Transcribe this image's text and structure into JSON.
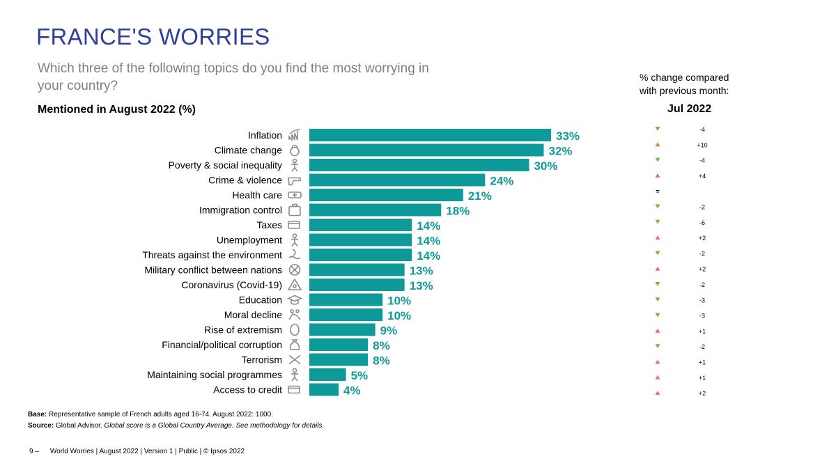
{
  "title": "FRANCE'S WORRIES",
  "subtitle": "Which three of the following topics do you find the most worrying in your country?",
  "mentioned_label": "Mentioned in August 2022 (%)",
  "change_header": "% change compared with previous month:",
  "change_month": "Jul 2022",
  "colors": {
    "bar": "#0e9a98",
    "title": "#2e3f9e",
    "up": "#e8706a",
    "down": "#7cb342",
    "icon": "#8a8a8a"
  },
  "chart_data": {
    "type": "bar",
    "orientation": "horizontal",
    "categories": [
      "Inflation",
      "Climate change",
      "Poverty & social inequality",
      "Crime & violence",
      "Health care",
      "Immigration control",
      "Taxes",
      "Unemployment",
      "Threats against the environment",
      "Military conflict between nations",
      "Coronavirus (Covid-19)",
      "Education",
      "Moral decline",
      "Rise of extremism",
      "Financial/political corruption",
      "Terrorism",
      "Maintaining social programmes",
      "Access to credit"
    ],
    "values": [
      33,
      32,
      30,
      24,
      21,
      18,
      14,
      14,
      14,
      13,
      13,
      10,
      10,
      9,
      8,
      8,
      5,
      4
    ],
    "value_labels": [
      "33%",
      "32%",
      "30%",
      "24%",
      "21%",
      "18%",
      "14%",
      "14%",
      "14%",
      "13%",
      "13%",
      "10%",
      "10%",
      "9%",
      "8%",
      "8%",
      "5%",
      "4%"
    ],
    "icons": [
      "rising-chart-icon",
      "flame-globe-icon",
      "person-icon",
      "gun-icon",
      "ambulance-icon",
      "suitcase-icon",
      "money-hand-icon",
      "person-pointing-icon",
      "polluted-water-icon",
      "globe-crosshair-icon",
      "hazard-icon",
      "graduation-cap-icon",
      "fight-icon",
      "masked-face-icon",
      "money-bag-icon",
      "crossed-weapons-icon",
      "hand-person-icon",
      "credit-card-icon"
    ],
    "changes": [
      "-4",
      "+10",
      "-4",
      "+4",
      "=",
      "-2",
      "-6",
      "+2",
      "-2",
      "+2",
      "-2",
      "-3",
      "-3",
      "+1",
      "-2",
      "+1",
      "+1",
      "+2"
    ],
    "change_direction": [
      "down",
      "up",
      "down",
      "up",
      "same",
      "down",
      "down",
      "up",
      "down",
      "up",
      "down",
      "down",
      "down",
      "up",
      "down",
      "up",
      "up",
      "up"
    ],
    "xlim": [
      0,
      33
    ],
    "grid": false,
    "legend": "none"
  },
  "base_label": "Base:",
  "base_text": "Representative sample of French adults aged 16-74. August 2022: 1000.",
  "source_label": "Source:",
  "source_text": "Global Advisor.",
  "source_note": "Global score is a Global Country Average. See methodology for details.",
  "footer": {
    "page": "9 –",
    "text": "World Worries | August 2022 |  Version 1  |  Public | © Ipsos 2022"
  }
}
